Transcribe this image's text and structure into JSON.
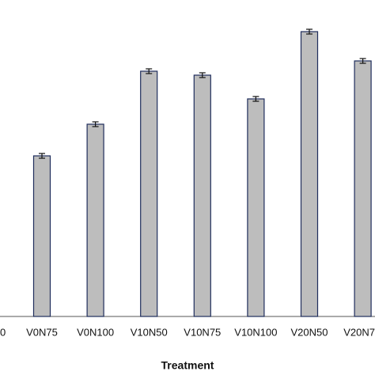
{
  "chart_data": {
    "type": "bar",
    "x_label": "Treatment",
    "categories": [
      "0",
      "V0N75",
      "V0N100",
      "V10N50",
      "V10N75",
      "V10N100",
      "V20N50",
      "V20N7"
    ],
    "values": [
      null,
      203,
      243,
      310,
      305,
      275,
      360,
      323
    ],
    "errors": [
      null,
      3,
      3,
      3,
      3,
      3,
      3,
      3
    ],
    "color": "#bdbdbd",
    "edge_color": "#1f2d5c",
    "ylim": [
      0,
      400
    ]
  }
}
